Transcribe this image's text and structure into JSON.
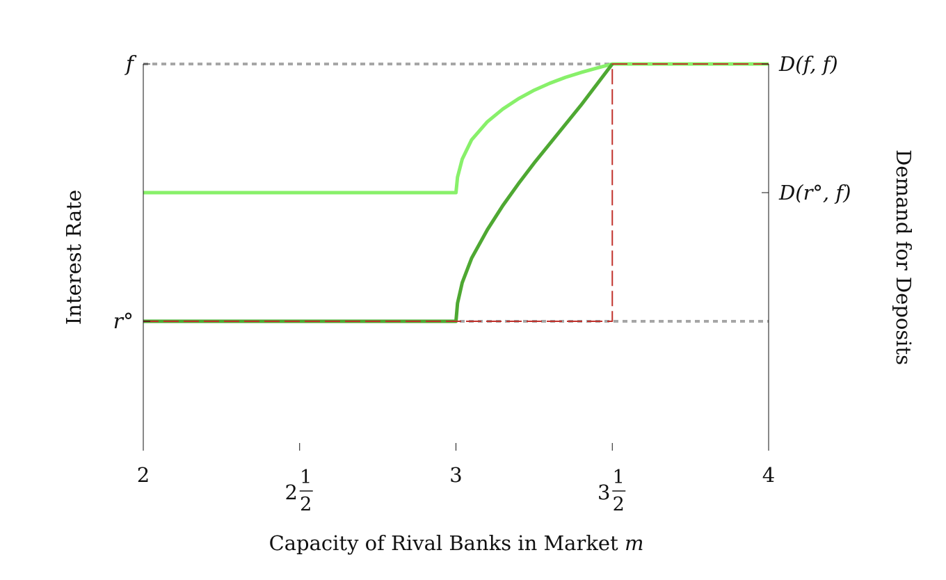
{
  "chart_data": {
    "type": "line",
    "title": "",
    "xlabel": "Capacity of Rival Banks in Market m",
    "ylabel_left": "Interest Rate",
    "ylabel_right": "Demand for Deposits",
    "xlim": [
      2,
      4
    ],
    "ylim": [
      -0.5,
      1
    ],
    "x_ticks": [
      {
        "value": 2,
        "whole": "2",
        "num": "",
        "den": ""
      },
      {
        "value": 2.5,
        "whole": "2",
        "num": "1",
        "den": "2"
      },
      {
        "value": 3,
        "whole": "3",
        "num": "",
        "den": ""
      },
      {
        "value": 3.5,
        "whole": "3",
        "num": "1",
        "den": "2"
      },
      {
        "value": 4,
        "whole": "4",
        "num": "",
        "den": ""
      }
    ],
    "y_ticks_left": [
      {
        "value": 1,
        "label": "f"
      },
      {
        "value": 0,
        "label": "r°"
      }
    ],
    "y_ticks_right": [
      {
        "value": 1,
        "label": "D(f, f)"
      },
      {
        "value": 0.5,
        "label": "D(r°, f)"
      }
    ],
    "reference_lines": [
      {
        "y": 1,
        "style": "dotted",
        "color": "#a6a6a6"
      },
      {
        "y": 0,
        "style": "dotted",
        "color": "#a6a6a6"
      }
    ],
    "series": [
      {
        "color": "#88f06a",
        "style": "solid",
        "x": [
          2,
          3,
          3.005,
          3.02,
          3.05,
          3.1,
          3.15,
          3.2,
          3.25,
          3.3,
          3.35,
          3.4,
          3.45,
          3.5,
          4
        ],
        "y": [
          0.5,
          0.5,
          0.56,
          0.63,
          0.705,
          0.775,
          0.825,
          0.865,
          0.898,
          0.925,
          0.948,
          0.967,
          0.984,
          1,
          1
        ]
      },
      {
        "color": "#4ea832",
        "style": "solid",
        "x": [
          2,
          3,
          3.005,
          3.02,
          3.05,
          3.1,
          3.15,
          3.2,
          3.25,
          3.3,
          3.35,
          3.4,
          3.45,
          3.5
        ],
        "y": [
          0,
          0,
          0.07,
          0.15,
          0.245,
          0.355,
          0.45,
          0.535,
          0.615,
          0.69,
          0.765,
          0.84,
          0.92,
          1
        ]
      },
      {
        "color": "#c0312b",
        "style": "dashed",
        "x": [
          2,
          3.5,
          3.5,
          4
        ],
        "y": [
          0,
          0,
          1,
          1
        ]
      }
    ],
    "grid": false,
    "legend": "none"
  }
}
